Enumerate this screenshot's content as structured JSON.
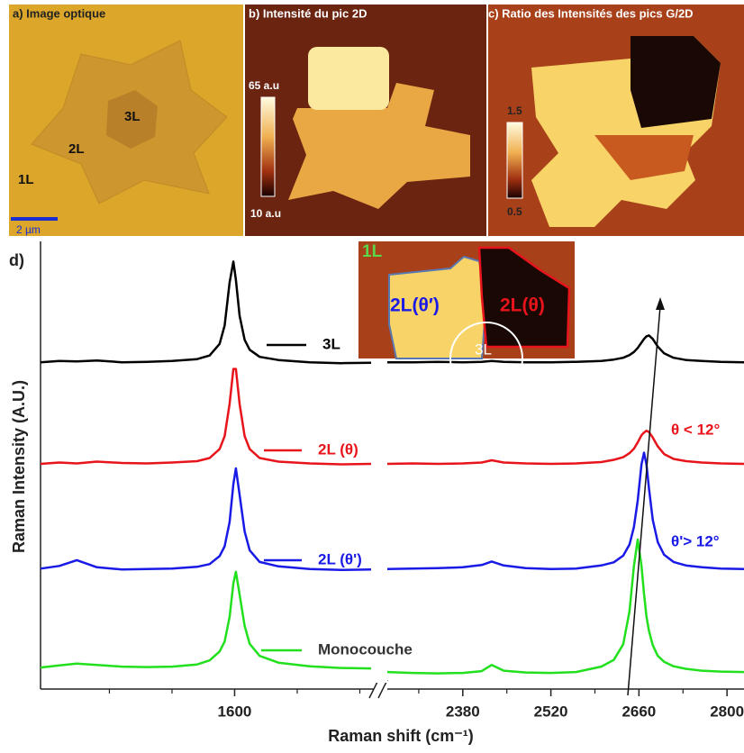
{
  "panels": [
    {
      "label": "a) Image optique",
      "texts": [
        "1L",
        "2L",
        "3L"
      ],
      "scale": "2 µm"
    },
    {
      "label": "b) Intensité du pic 2D",
      "colorbar": [
        "65 a.u",
        "10 a.u"
      ]
    },
    {
      "label": "c) Ratio des Intensités des pics G/2D",
      "colorbar": [
        "1.5",
        "0.5"
      ]
    }
  ],
  "inset": [
    "1L",
    "2L(θ′)",
    "2L(θ)",
    "3L"
  ],
  "chart_data": [
    {
      "type": "line",
      "panel_label": "d)",
      "ylabel": "Raman Intensity (A.U.)",
      "xlim": [
        1445,
        1709
      ],
      "xticks": [
        1600
      ],
      "minor_xticks": [
        1500,
        1550,
        1650,
        1700
      ],
      "ylim": [
        0,
        100
      ],
      "x": [
        1445,
        1460,
        1474,
        1490,
        1510,
        1530,
        1550,
        1570,
        1580,
        1588,
        1592,
        1596,
        1599,
        1601,
        1604,
        1608,
        1612,
        1620,
        1635,
        1660,
        1685,
        1709
      ],
      "series": [
        {
          "name": "3L",
          "color": "#000000",
          "values": [
            73,
            73.3,
            73.2,
            73.4,
            73,
            73.1,
            73.3,
            73.7,
            74.5,
            77.1,
            81.2,
            90.8,
            95.5,
            91.4,
            83.4,
            78,
            75.8,
            74.2,
            73.5,
            73,
            72.8,
            72.9
          ]
        },
        {
          "name": "2L (θ)",
          "color": "#e8141b",
          "values": [
            50.3,
            50.6,
            50.4,
            50.8,
            50.5,
            50.4,
            50.6,
            50.9,
            51.6,
            53.6,
            56.5,
            63.7,
            71.5,
            71.5,
            63.7,
            56.5,
            53.6,
            51.6,
            50.8,
            50.4,
            50.2,
            50.3
          ]
        },
        {
          "name": "2L (θ')",
          "color": "#1a1ae6",
          "values": [
            26.9,
            27.5,
            28.8,
            27.2,
            26.7,
            26.8,
            26.9,
            27.3,
            27.9,
            29.7,
            31.9,
            37.3,
            45.8,
            49.3,
            43.4,
            35.2,
            31,
            28.4,
            27.4,
            26.8,
            26.6,
            26.7
          ]
        },
        {
          "name": "Monocouche",
          "color": "#22e01e",
          "values": [
            4.8,
            5.3,
            5.7,
            5.4,
            5,
            4.9,
            5,
            5.5,
            6.4,
            8.4,
            10.6,
            16.1,
            23.6,
            26.2,
            21.1,
            14.1,
            10.1,
            7.4,
            5.9,
            5.1,
            4.7,
            4.6
          ]
        }
      ]
    },
    {
      "type": "line",
      "xlabel": "Raman shift (cm⁻¹)",
      "xlim": [
        2260,
        2827
      ],
      "xticks": [
        2380,
        2520,
        2660,
        2800
      ],
      "minor_xticks": [
        2310,
        2450,
        2590,
        2730
      ],
      "ylim": [
        0,
        100
      ],
      "annotations": [
        "θ < 12°",
        "θ'> 12°"
      ],
      "x": [
        2260,
        2300,
        2340,
        2380,
        2410,
        2426,
        2445,
        2480,
        2520,
        2560,
        2600,
        2620,
        2635,
        2645,
        2652,
        2658,
        2664,
        2668,
        2672,
        2676,
        2682,
        2690,
        2700,
        2715,
        2735,
        2760,
        2790,
        2827
      ],
      "series": [
        {
          "color": "#000000",
          "values": [
            73,
            73,
            73.1,
            73,
            73.1,
            73.3,
            73.1,
            73,
            73,
            73.1,
            73.3,
            73.6,
            74,
            74.6,
            75.3,
            76.2,
            77.4,
            78.2,
            78.8,
            79,
            78.2,
            76.5,
            75,
            74,
            73.5,
            73.3,
            73.1,
            73
          ]
        },
        {
          "color": "#e8141b",
          "values": [
            50.3,
            50.4,
            50.3,
            50.4,
            50.6,
            51.1,
            50.6,
            50.4,
            50.3,
            50.4,
            50.7,
            51.2,
            51.8,
            52.7,
            53.7,
            55.1,
            56.7,
            57.3,
            57.7,
            57.4,
            56.2,
            54.2,
            52.5,
            51.4,
            50.9,
            50.6,
            50.4,
            50.3
          ]
        },
        {
          "color": "#1a1ae6",
          "values": [
            26.8,
            26.9,
            27,
            27.2,
            27.7,
            28.5,
            27.6,
            27,
            26.8,
            26.9,
            27.6,
            28.3,
            29.8,
            32.3,
            36.2,
            42.1,
            50.2,
            52.8,
            50.2,
            44.8,
            37.8,
            32.8,
            30,
            28.4,
            27.6,
            27.2,
            26.9,
            26.8
          ]
        },
        {
          "color": "#22e01e",
          "values": [
            3.8,
            3.6,
            3.5,
            3.6,
            4,
            5.4,
            4.1,
            3.7,
            3.6,
            3.8,
            5,
            6.5,
            10,
            17.4,
            27.5,
            33.4,
            27.5,
            21.3,
            16.2,
            13,
            9.8,
            7.4,
            6.1,
            5.1,
            4.5,
            4.1,
            3.9,
            3.8
          ]
        }
      ]
    }
  ]
}
